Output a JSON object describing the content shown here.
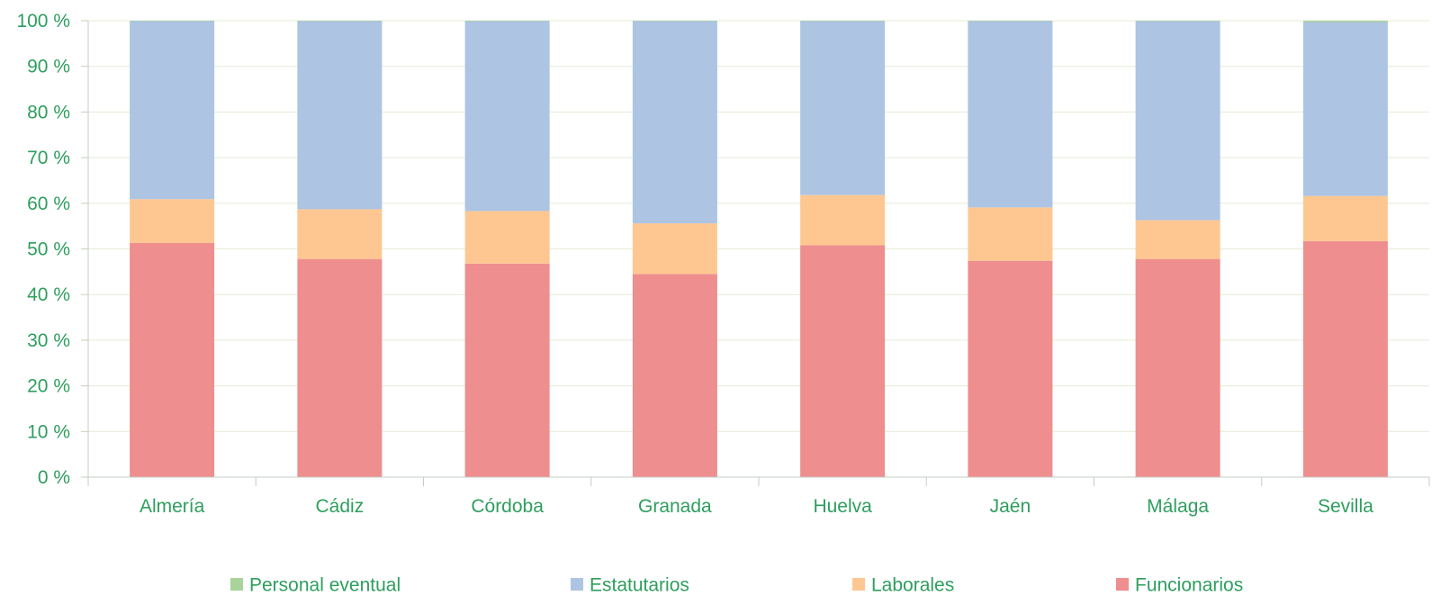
{
  "chart_data": {
    "type": "bar",
    "stacked": true,
    "categories": [
      "Almería",
      "Cádiz",
      "Córdoba",
      "Granada",
      "Huelva",
      "Jaén",
      "Málaga",
      "Sevilla"
    ],
    "series": [
      {
        "name": "Funcionarios",
        "color": "#ee8e8e",
        "values": [
          51.3,
          47.8,
          46.8,
          44.5,
          50.8,
          47.4,
          47.8,
          51.7
        ]
      },
      {
        "name": "Laborales",
        "color": "#fec791",
        "values": [
          9.6,
          10.9,
          11.5,
          11.1,
          11.0,
          11.7,
          8.5,
          9.9
        ]
      },
      {
        "name": "Estatutarios",
        "color": "#adc4e3",
        "values": [
          39.0,
          41.2,
          41.6,
          44.3,
          38.1,
          40.8,
          43.6,
          38.1
        ]
      },
      {
        "name": "Personal eventual",
        "color": "#a8d39b",
        "values": [
          0.1,
          0.1,
          0.1,
          0.1,
          0.1,
          0.1,
          0.1,
          0.3
        ]
      }
    ],
    "legend_order": [
      "Personal eventual",
      "Estatutarios",
      "Laborales",
      "Funcionarios"
    ],
    "y_ticks": [
      "0 %",
      "10 %",
      "20 %",
      "30 %",
      "40 %",
      "50 %",
      "60 %",
      "70 %",
      "80 %",
      "90 %",
      "100 %"
    ],
    "ylim": [
      0,
      100
    ],
    "title": "",
    "xlabel": "",
    "ylabel": "",
    "grid": true,
    "legend_position": "bottom",
    "text_color": "#2e9e5e",
    "grid_color": "#e4ecd6",
    "axis_color": "#c4ccc4"
  }
}
